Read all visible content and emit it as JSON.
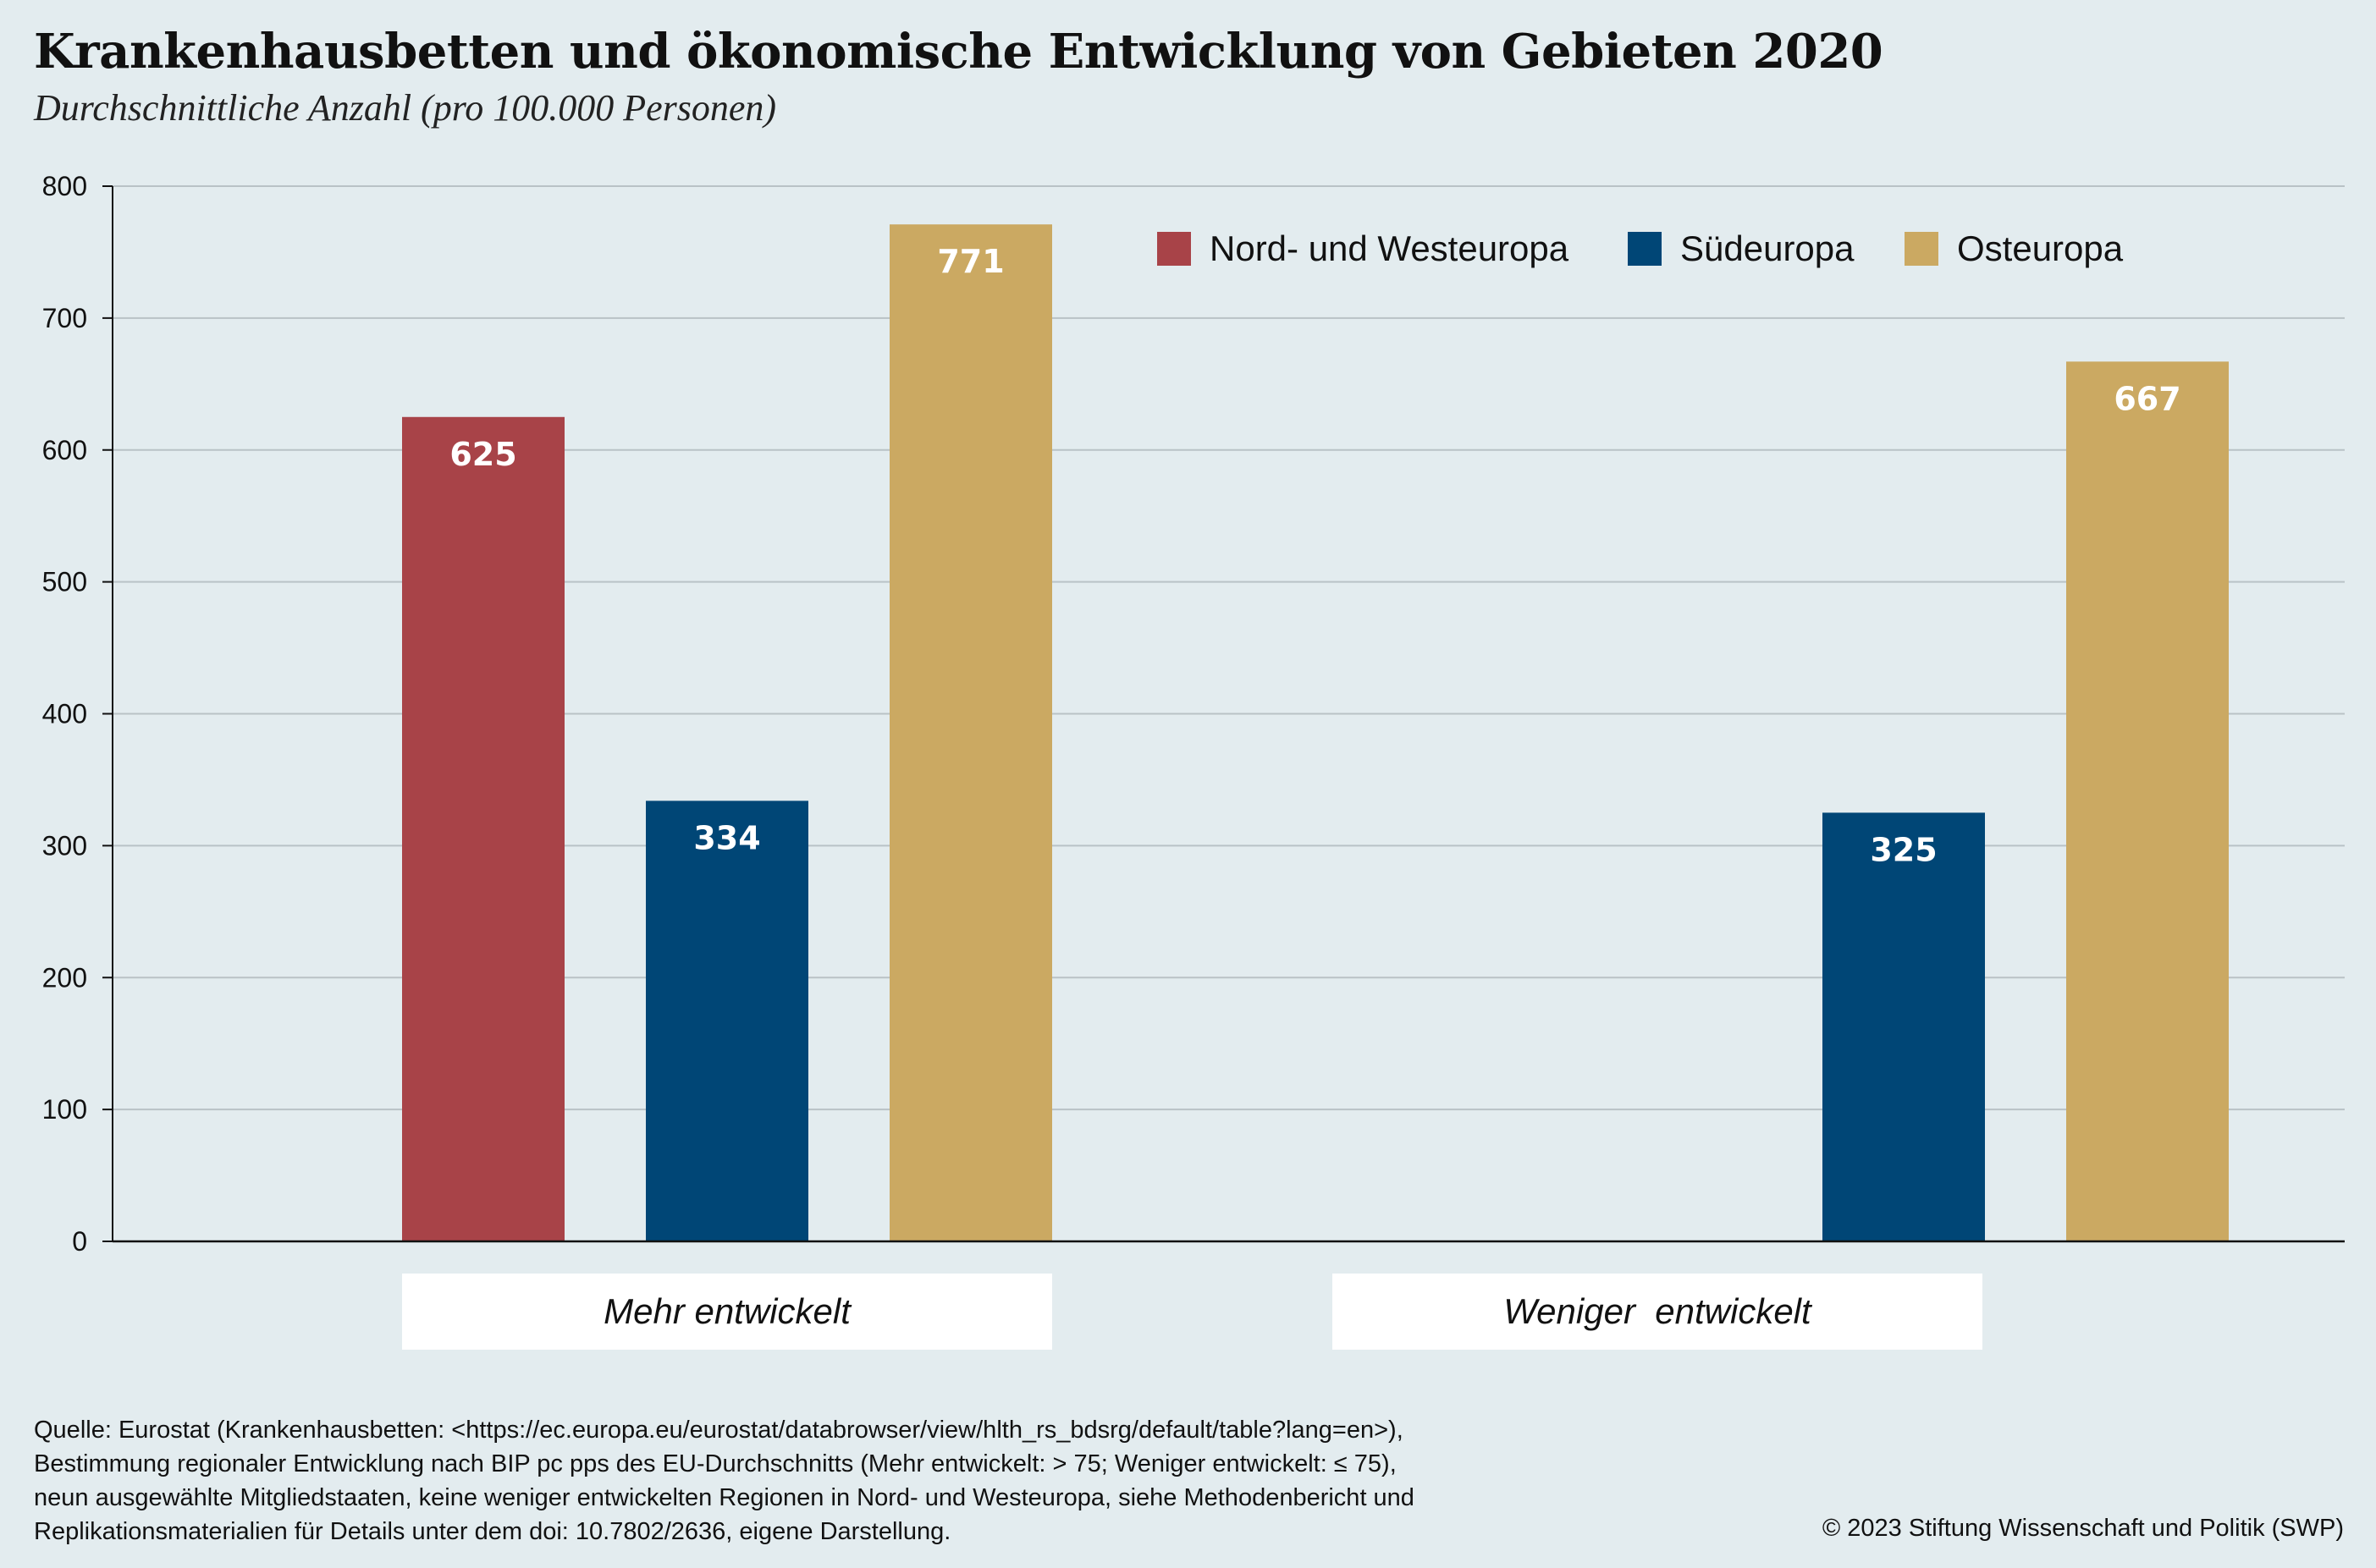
{
  "title": "Krankenhausbetten und ökonomische Entwicklung von Gebieten 2020",
  "subtitle": "Durchschnittliche Anzahl (pro 100.000 Personen)",
  "chart_data": {
    "type": "bar",
    "categories": [
      "Mehr entwickelt",
      "Weniger  entwickelt"
    ],
    "series": [
      {
        "name": "Nord- und Westeuropa",
        "color": "#a84348",
        "values": [
          625,
          null
        ]
      },
      {
        "name": "Südeuropa",
        "color": "#004676",
        "values": [
          334,
          325
        ]
      },
      {
        "name": "Osteuropa",
        "color": "#cba962",
        "values": [
          771,
          667
        ]
      }
    ],
    "ylim": [
      0,
      800
    ],
    "yticks": [
      0,
      100,
      200,
      300,
      400,
      500,
      600,
      700,
      800
    ],
    "grid": true,
    "legend_position": "top-right",
    "data_labels": true
  },
  "footnote": [
    "Quelle: Eurostat (Krankenhausbetten: <https://ec.europa.eu/eurostat/databrowser/view/hlth_rs_bdsrg/default/table?lang=en>),",
    "Bestimmung regionaler Entwicklung nach BIP pc pps des EU-Durchschnitts (Mehr entwickelt: > 75; Weniger entwickelt: ≤ 75),",
    "neun ausgewählte Mitgliedstaaten, keine weniger entwickelten Regionen in Nord- und Westeuropa, siehe Methodenbericht und",
    "Replikationsmaterialien für Details unter dem doi: 10.7802/2636, eigene Darstellung."
  ],
  "copyright": "© 2023 Stiftung Wissenschaft und Politik (SWP)"
}
